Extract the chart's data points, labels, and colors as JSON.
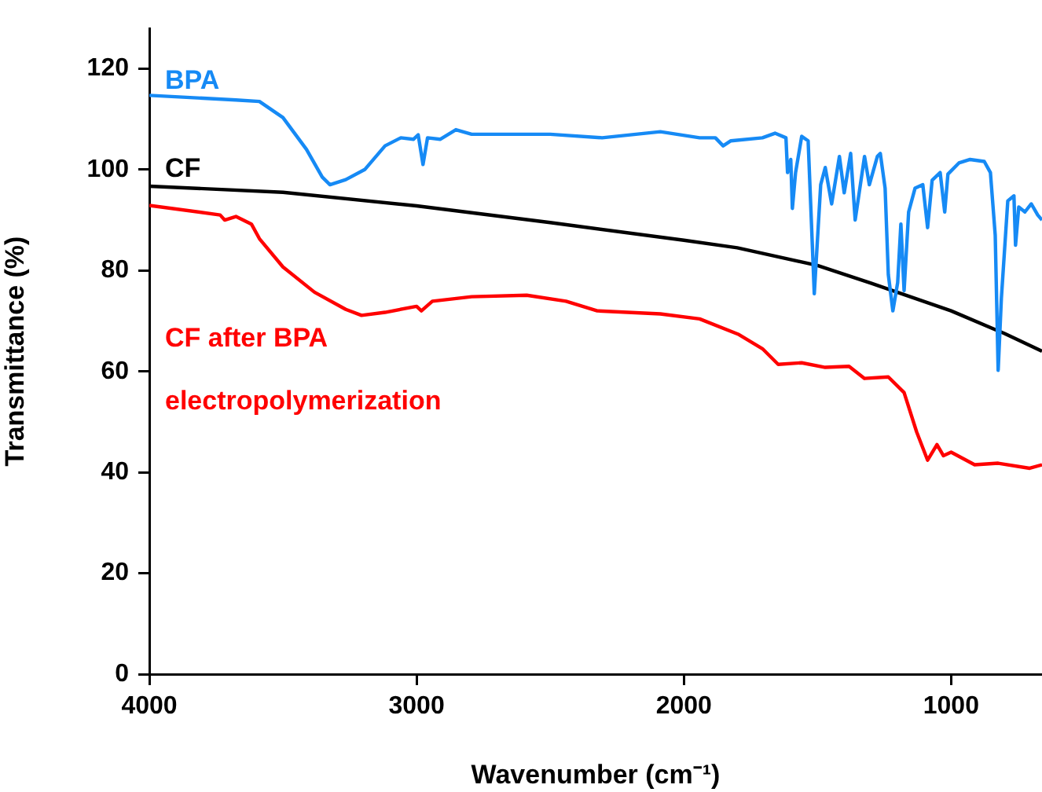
{
  "chart_data": {
    "type": "line",
    "xlabel": "Wavenumber (cm⁻¹)",
    "ylabel": "Transmittance (%)",
    "xlim": [
      4000,
      660
    ],
    "xticks": [
      4000,
      3000,
      2000,
      1000
    ],
    "ylim": [
      0,
      128
    ],
    "yticks": [
      0,
      20,
      40,
      60,
      80,
      100,
      120
    ],
    "grid": false,
    "legend": false,
    "marker": "none",
    "line_style": "solid",
    "series": [
      {
        "name": "BPA",
        "color": "#168af5",
        "x": [
          4000,
          3676,
          3588,
          3500,
          3412,
          3353,
          3324,
          3265,
          3194,
          3118,
          3059,
          3012,
          2994,
          2976,
          2959,
          2912,
          2853,
          2794,
          2500,
          2306,
          2088,
          1941,
          1882,
          1853,
          1824,
          1706,
          1659,
          1618,
          1612,
          1600,
          1594,
          1582,
          1559,
          1535,
          1512,
          1488,
          1471,
          1447,
          1418,
          1400,
          1376,
          1359,
          1324,
          1306,
          1276,
          1265,
          1247,
          1235,
          1218,
          1200,
          1188,
          1176,
          1159,
          1135,
          1106,
          1088,
          1071,
          1041,
          1024,
          1012,
          971,
          929,
          876,
          853,
          835,
          824,
          812,
          788,
          765,
          759,
          747,
          724,
          700,
          676,
          660
        ],
        "values": [
          114.7,
          113.8,
          113.5,
          110.3,
          104,
          98.5,
          97,
          98,
          100,
          104.7,
          106.3,
          106,
          106.9,
          101,
          106.3,
          106,
          107.9,
          107,
          107,
          106.3,
          107.5,
          106.3,
          106.3,
          104.7,
          105.7,
          106.3,
          107.2,
          106.3,
          99.4,
          102,
          92.3,
          99.4,
          106.6,
          105.7,
          75.4,
          97,
          100.4,
          93.2,
          102.6,
          95.4,
          103.2,
          90,
          102.6,
          97,
          102.6,
          103.2,
          96.3,
          79.2,
          72,
          77.6,
          89.2,
          76,
          91.6,
          96.3,
          97,
          88.5,
          97.9,
          99.4,
          91.6,
          99.1,
          101.3,
          102,
          101.6,
          99.4,
          87,
          60.2,
          74.5,
          93.8,
          94.8,
          85,
          92.6,
          91.6,
          93.2,
          91,
          90
        ]
      },
      {
        "name": "CF",
        "color": "#000000",
        "x": [
          4000,
          3500,
          3000,
          2500,
          2000,
          1800,
          1500,
          1300,
          1000,
          800,
          660
        ],
        "values": [
          96.7,
          95.5,
          92.8,
          89.5,
          86,
          84.5,
          81,
          77.5,
          72,
          67.5,
          64
        ]
      },
      {
        "name": "CF after BPA electropolymerization",
        "color": "#ff0000",
        "x": [
          4000,
          3735,
          3718,
          3676,
          3618,
          3588,
          3500,
          3382,
          3265,
          3206,
          3118,
          3000,
          2982,
          2941,
          2794,
          2588,
          2441,
          2324,
          2088,
          1941,
          1794,
          1706,
          1647,
          1559,
          1471,
          1382,
          1324,
          1235,
          1176,
          1129,
          1088,
          1053,
          1029,
          1000,
          912,
          824,
          706,
          660
        ],
        "values": [
          92.9,
          91,
          90,
          90.7,
          89.2,
          86.3,
          80.7,
          75.7,
          72.3,
          71.1,
          71.7,
          72.9,
          72,
          73.9,
          74.8,
          75.1,
          73.9,
          72,
          71.4,
          70.4,
          67.3,
          64.5,
          61.4,
          61.7,
          60.8,
          61,
          58.6,
          58.9,
          55.8,
          48,
          42.4,
          45.5,
          43.3,
          44,
          41.5,
          41.8,
          40.8,
          41.5
        ]
      }
    ]
  }
}
